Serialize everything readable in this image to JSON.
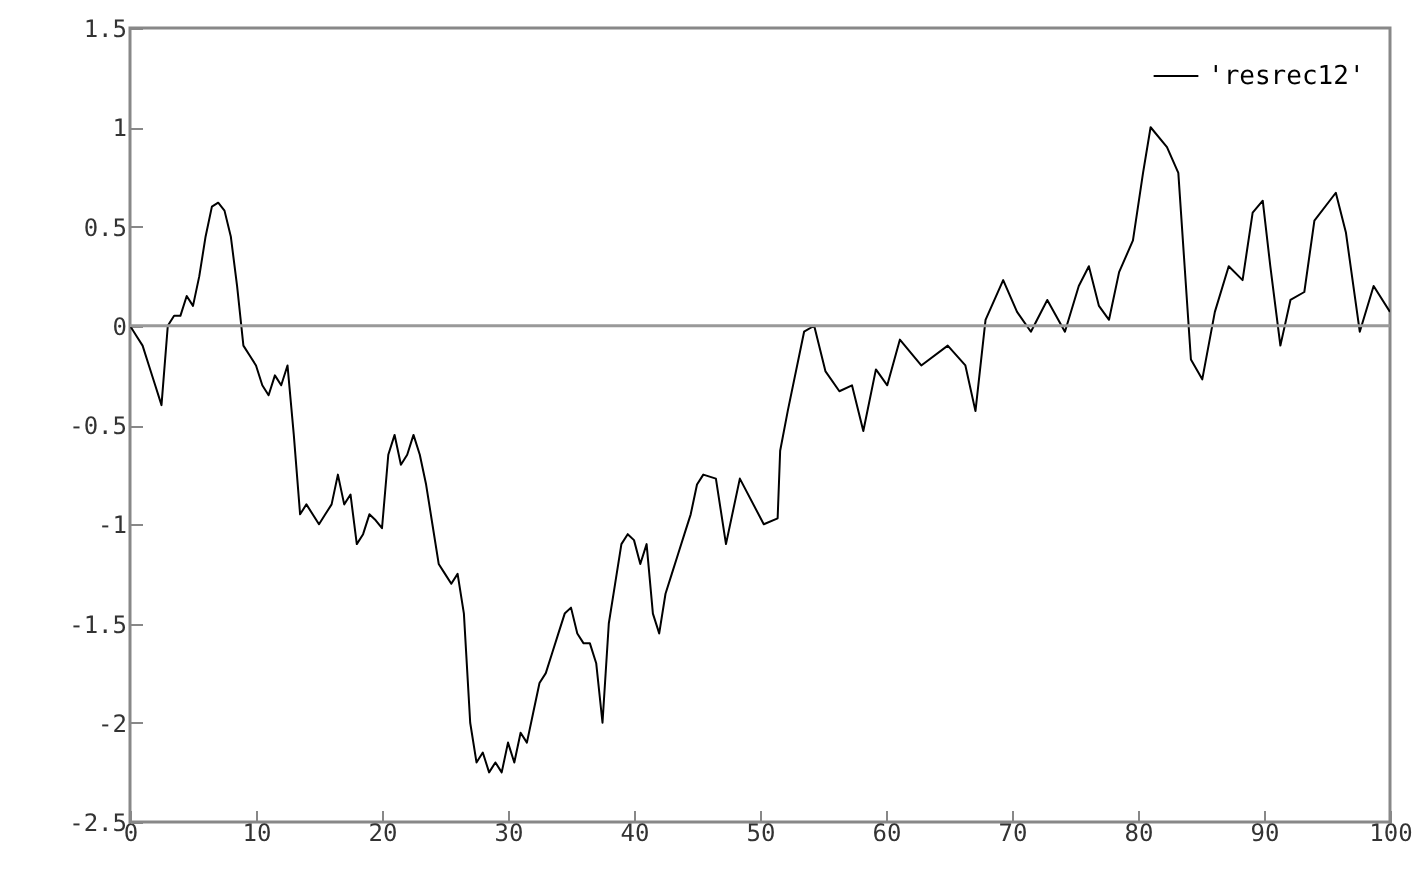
{
  "chart_data": {
    "type": "line",
    "legend": "top right",
    "xlim": [
      0,
      100
    ],
    "ylim": [
      -2.5,
      1.5
    ],
    "xticks": [
      0,
      10,
      20,
      30,
      40,
      50,
      60,
      70,
      80,
      90,
      100
    ],
    "yticks": [
      -2.5,
      -2,
      -1.5,
      -1,
      -0.5,
      0,
      0.5,
      1,
      1.5
    ],
    "grid": false,
    "ref_lines": [
      {
        "axis": "y",
        "value": 0,
        "color": "#999999"
      }
    ],
    "series": [
      {
        "name": "'resrec12'",
        "color": "#000000",
        "x": [
          0,
          0.5,
          1,
          1.5,
          2,
          2.5,
          3,
          3.5,
          4,
          4.5,
          5,
          5.5,
          6,
          6.5,
          7,
          7.5,
          8,
          8.5,
          9,
          9.5,
          10,
          10.5,
          11,
          11.5,
          12,
          12.5,
          13,
          13.5,
          14,
          15,
          15.5,
          16,
          16.5,
          17,
          17.5,
          18,
          18.5,
          19,
          19.5,
          20,
          20.5,
          21,
          21.5,
          22,
          22.5,
          23,
          23.5,
          24,
          24.5,
          25,
          25.5,
          26,
          26.5,
          27,
          27.5,
          28,
          28.5,
          29,
          29.5,
          30,
          30.5,
          31,
          31.5,
          32,
          32.5,
          33,
          33.5,
          34,
          34.5,
          35,
          35.5,
          36,
          36.5,
          37,
          37.5,
          38,
          38.5,
          39,
          39.5,
          40,
          40.5,
          41,
          41.5,
          42,
          42.5,
          43,
          43.5,
          44,
          44.5,
          45,
          45.5,
          46.5,
          47.3,
          48.4,
          50.3,
          51.4,
          51.6,
          52.2,
          53.5,
          54.3,
          55.2,
          56.3,
          57.3,
          58.2,
          59.2,
          60.1,
          61.1,
          62.8,
          64.9,
          66.3,
          67.1,
          67.9,
          69.3,
          70.4,
          71.5,
          72.8,
          74.2,
          75.3,
          76.1,
          76.9,
          77.7,
          78.5,
          79.6,
          80.4,
          81,
          82.3,
          83.2,
          83.7,
          84.2,
          85.1,
          86.1,
          87.2,
          88.3,
          89.1,
          89.9,
          90.5,
          91.3,
          92.1,
          93.2,
          94,
          95.7,
          96.5,
          97.6,
          98.7,
          100
        ],
        "values": [
          0,
          -0.05,
          -0.1,
          -0.2,
          -0.3,
          -0.4,
          0,
          0.05,
          0.05,
          0.15,
          0.1,
          0.25,
          0.45,
          0.6,
          0.62,
          0.58,
          0.45,
          0.2,
          -0.1,
          -0.15,
          -0.2,
          -0.3,
          -0.35,
          -0.25,
          -0.3,
          -0.2,
          -0.55,
          -0.95,
          -0.9,
          -1,
          -0.95,
          -0.9,
          -0.75,
          -0.9,
          -0.85,
          -1.1,
          -1.05,
          -0.95,
          -0.98,
          -1.02,
          -0.65,
          -0.55,
          -0.7,
          -0.65,
          -0.55,
          -0.65,
          -0.8,
          -1,
          -1.2,
          -1.25,
          -1.3,
          -1.25,
          -1.45,
          -2,
          -2.2,
          -2.15,
          -2.25,
          -2.2,
          -2.25,
          -2.1,
          -2.2,
          -2.05,
          -2.1,
          -1.95,
          -1.8,
          -1.75,
          -1.65,
          -1.55,
          -1.45,
          -1.42,
          -1.55,
          -1.6,
          -1.6,
          -1.7,
          -2,
          -1.5,
          -1.3,
          -1.1,
          -1.05,
          -1.08,
          -1.2,
          -1.1,
          -1.45,
          -1.55,
          -1.35,
          -1.25,
          -1.15,
          -1.05,
          -0.95,
          -0.8,
          -0.75,
          -0.77,
          -1.1,
          -0.77,
          -1,
          -0.97,
          -0.63,
          -0.43,
          -0.03,
          0,
          -0.23,
          -0.33,
          -0.3,
          -0.53,
          -0.22,
          -0.3,
          -0.07,
          -0.2,
          -0.1,
          -0.2,
          -0.43,
          0.03,
          0.23,
          0.07,
          -0.03,
          0.13,
          -0.03,
          0.2,
          0.3,
          0.1,
          0.03,
          0.27,
          0.43,
          0.77,
          1,
          0.9,
          0.77,
          0.3,
          -0.17,
          -0.27,
          0.07,
          0.3,
          0.23,
          0.57,
          0.63,
          0.3,
          -0.1,
          0.13,
          0.17,
          0.53,
          0.67,
          0.47,
          -0.03,
          0.2,
          0.07
        ]
      }
    ]
  }
}
